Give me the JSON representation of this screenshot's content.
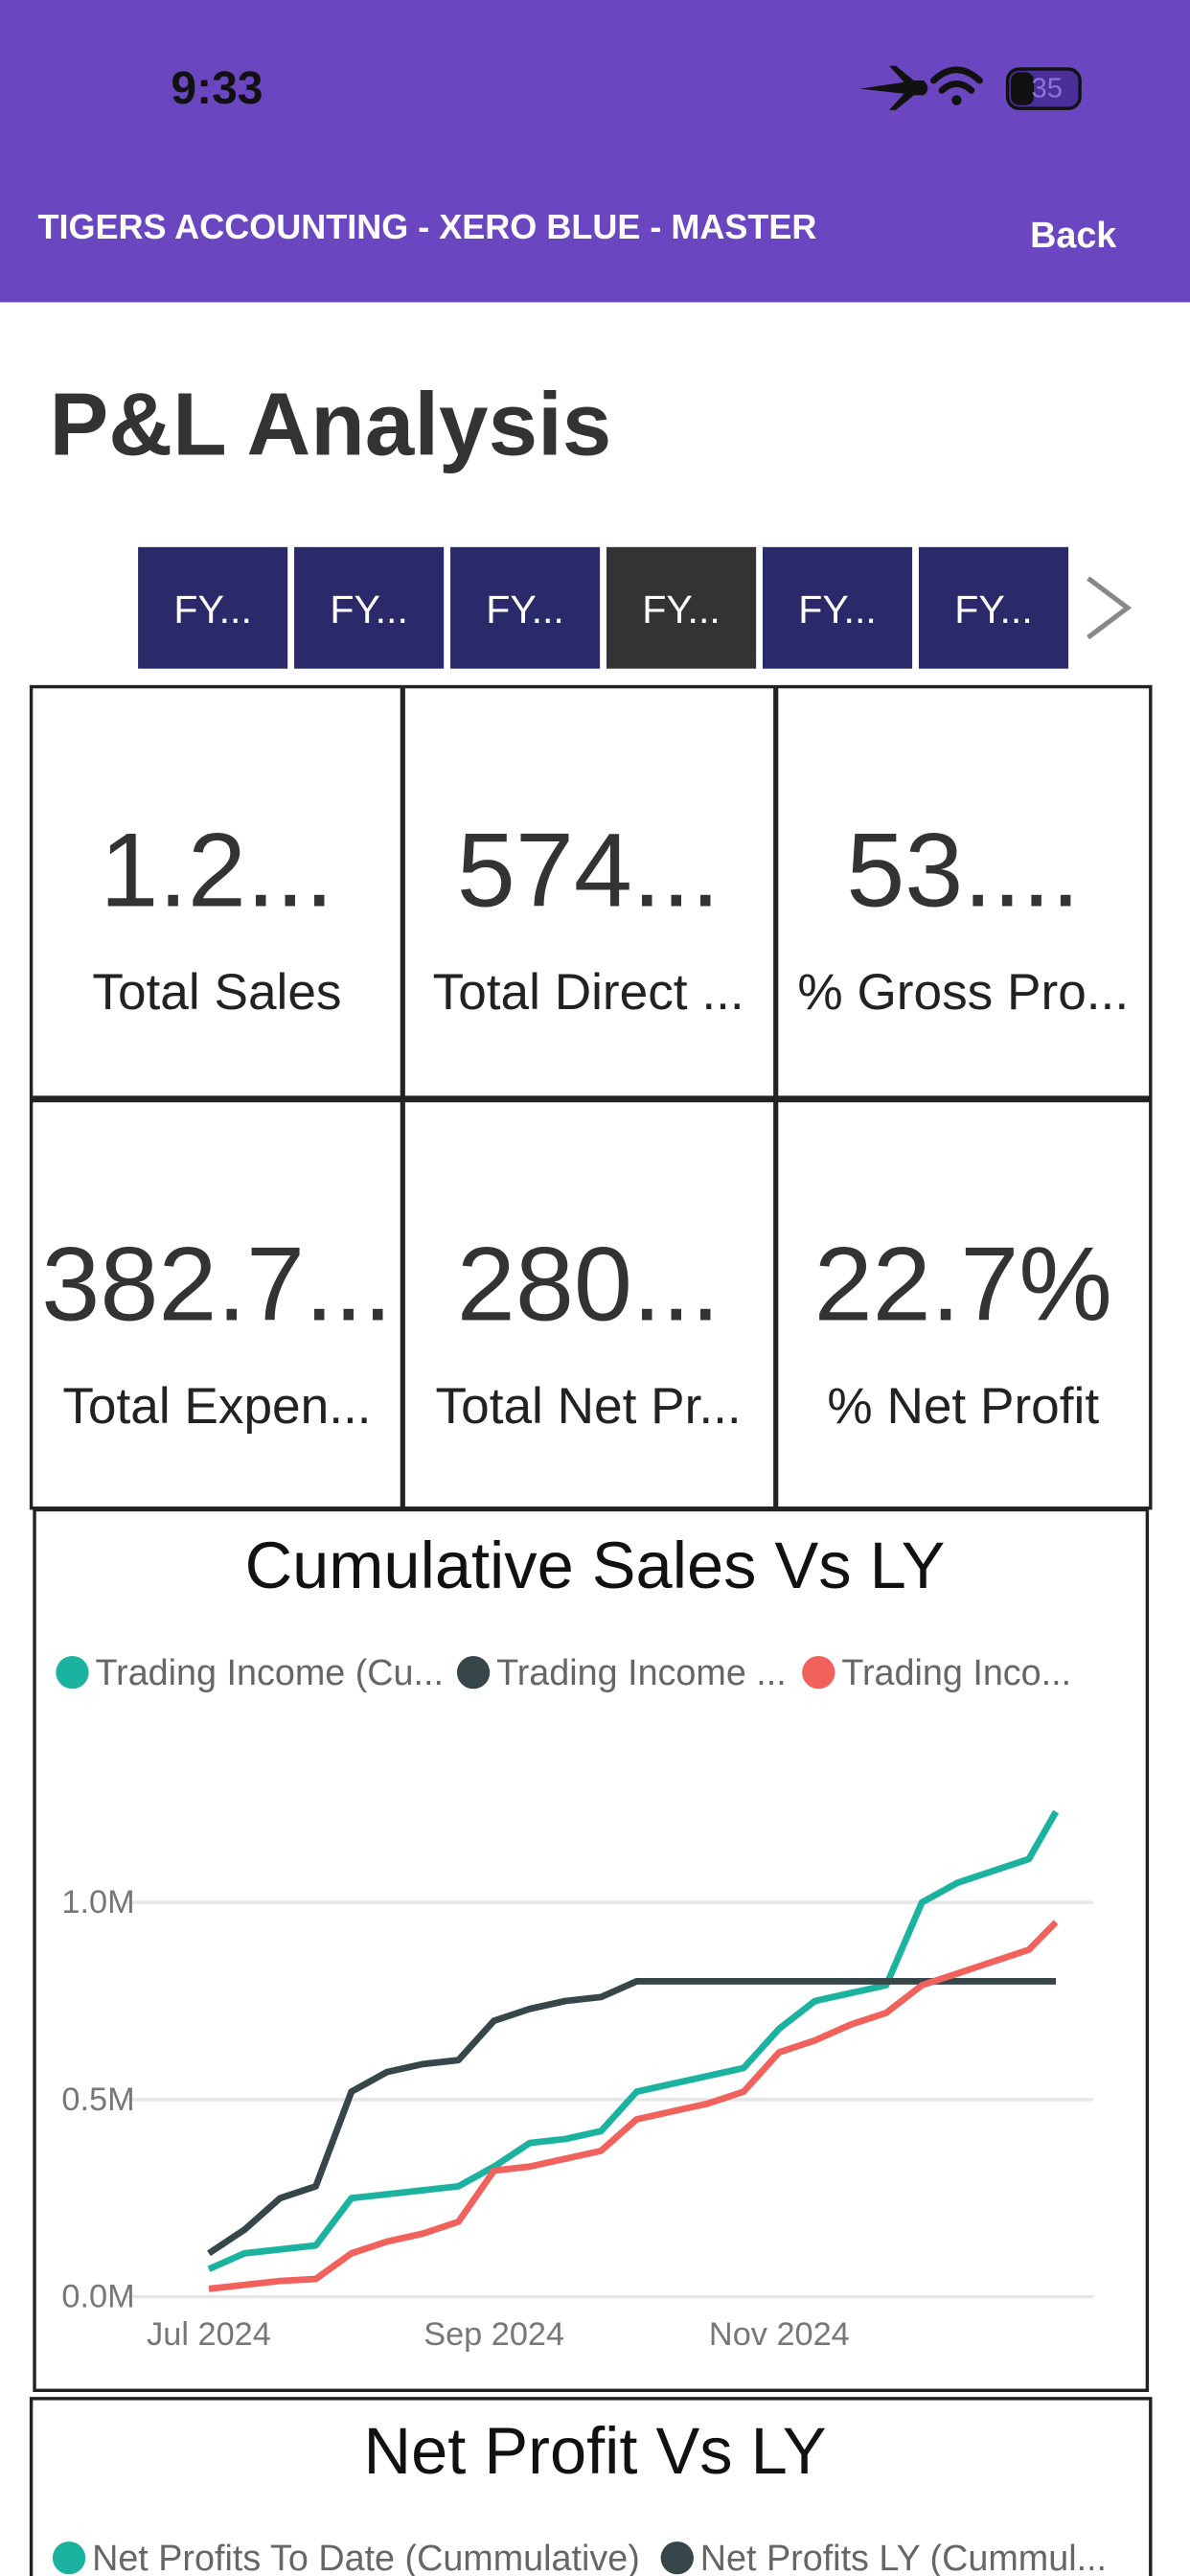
{
  "status_bar": {
    "time": "9:33",
    "battery": "35"
  },
  "header": {
    "title": "TIGERS ACCOUNTING - XERO BLUE - MASTER",
    "back": "Back"
  },
  "page_title": "P&L Analysis",
  "tabs": [
    "FY...",
    "FY...",
    "FY...",
    "FY...",
    "FY...",
    "FY..."
  ],
  "selected_tab": 3,
  "kpis": [
    {
      "value": "1.2...",
      "label": "Total Sales"
    },
    {
      "value": "574...",
      "label": "Total Direct ..."
    },
    {
      "value": "53....",
      "label": "% Gross Pro..."
    },
    {
      "value": "382.7...",
      "label": "Total Expen..."
    },
    {
      "value": "280...",
      "label": "Total Net Pr..."
    },
    {
      "value": "22.7%",
      "label": "% Net Profit"
    }
  ],
  "chart_data": [
    {
      "type": "line",
      "title": "Cumulative Sales Vs LY",
      "x": [
        0,
        0.25,
        0.5,
        0.75,
        1,
        1.25,
        1.5,
        1.75,
        2,
        2.25,
        2.5,
        2.75,
        3,
        3.25,
        3.5,
        3.75,
        4,
        4.25,
        4.5,
        4.75,
        5,
        5.25,
        5.5,
        5.75,
        5.94
      ],
      "xlim": [
        -0.6,
        6.2
      ],
      "xticks": [
        {
          "value": 0,
          "label": "Jul 2024"
        },
        {
          "value": 2,
          "label": "Sep 2024"
        },
        {
          "value": 4,
          "label": "Nov 2024"
        }
      ],
      "ylim": [
        0,
        1300000
      ],
      "yticks": [
        {
          "value": 0,
          "label": "0.0M"
        },
        {
          "value": 500000,
          "label": "0.5M"
        },
        {
          "value": 1000000,
          "label": "1.0M"
        }
      ],
      "grid": true,
      "series": [
        {
          "name": "Trading Income (Cu...",
          "color": "#1bb3a0",
          "values": [
            70000,
            110000,
            120000,
            130000,
            250000,
            260000,
            270000,
            280000,
            330000,
            390000,
            400000,
            420000,
            520000,
            540000,
            560000,
            580000,
            680000,
            750000,
            770000,
            790000,
            1000000,
            1050000,
            1080000,
            1110000,
            1230000
          ]
        },
        {
          "name": "Trading Income ...",
          "color": "#374649",
          "values": [
            110000,
            170000,
            250000,
            280000,
            520000,
            570000,
            590000,
            600000,
            700000,
            730000,
            750000,
            760000,
            800000,
            800000,
            800000,
            800000,
            800000,
            800000,
            800000,
            800000,
            800000,
            800000,
            800000,
            800000,
            800000
          ]
        },
        {
          "name": "Trading Inco...",
          "color": "#f1625d",
          "values": [
            20000,
            30000,
            40000,
            45000,
            110000,
            140000,
            160000,
            190000,
            320000,
            330000,
            350000,
            370000,
            450000,
            470000,
            490000,
            520000,
            620000,
            650000,
            690000,
            720000,
            790000,
            820000,
            850000,
            880000,
            950000
          ]
        }
      ]
    },
    {
      "type": "line",
      "title": "Net Profit Vs LY",
      "series": [
        {
          "name": "Net Profits To Date (Cummulative)",
          "color": "#1bb3a0"
        },
        {
          "name": "Net Profits LY (Cummul...",
          "color": "#374649"
        }
      ]
    }
  ]
}
